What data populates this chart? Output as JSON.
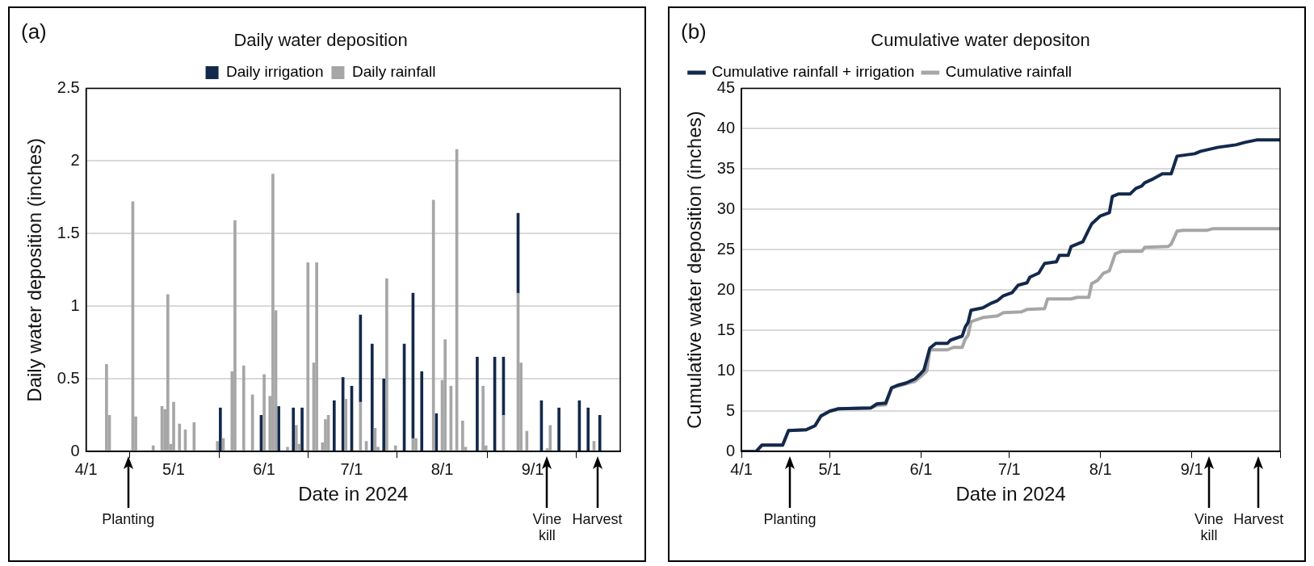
{
  "chart_data": [
    {
      "type": "bar",
      "title": "Daily water deposition",
      "xlabel": "Date in 2024",
      "ylabel": "Daily water deposition (inches)",
      "stacked": true,
      "grid": "y",
      "legend": "top",
      "x": [
        "2024-04-08",
        "2024-04-09",
        "2024-04-17",
        "2024-04-18",
        "2024-04-24",
        "2024-04-27",
        "2024-04-28",
        "2024-04-29",
        "2024-04-30",
        "2024-05-01",
        "2024-05-03",
        "2024-05-05",
        "2024-05-08",
        "2024-05-16",
        "2024-05-17",
        "2024-05-18",
        "2024-05-21",
        "2024-05-22",
        "2024-05-25",
        "2024-05-28",
        "2024-05-31",
        "2024-06-01",
        "2024-06-03",
        "2024-06-04",
        "2024-06-05",
        "2024-06-06",
        "2024-06-09",
        "2024-06-11",
        "2024-06-12",
        "2024-06-13",
        "2024-06-14",
        "2024-06-16",
        "2024-06-18",
        "2024-06-19",
        "2024-06-21",
        "2024-06-22",
        "2024-06-23",
        "2024-06-25",
        "2024-06-28",
        "2024-06-29",
        "2024-07-01",
        "2024-07-04",
        "2024-07-06",
        "2024-07-08",
        "2024-07-09",
        "2024-07-10",
        "2024-07-12",
        "2024-07-13",
        "2024-07-16",
        "2024-07-19",
        "2024-07-22",
        "2024-07-23",
        "2024-07-25",
        "2024-07-29",
        "2024-07-30",
        "2024-08-01",
        "2024-08-02",
        "2024-08-04",
        "2024-08-06",
        "2024-08-08",
        "2024-08-09",
        "2024-08-13",
        "2024-08-15",
        "2024-08-16",
        "2024-08-19",
        "2024-08-22",
        "2024-08-27",
        "2024-08-28",
        "2024-08-30",
        "2024-09-04",
        "2024-09-06",
        "2024-09-07",
        "2024-09-10",
        "2024-09-17",
        "2024-09-20",
        "2024-09-22",
        "2024-09-24"
      ],
      "series": [
        {
          "name": "Daily rainfall",
          "color": "#a6a6a6",
          "values": [
            0.6,
            0.25,
            1.72,
            0.24,
            0.04,
            0.31,
            0.29,
            1.08,
            0.05,
            0.34,
            0.19,
            0.15,
            0.2,
            0.07,
            null,
            0.09,
            0.55,
            1.59,
            0.59,
            0.39,
            null,
            0.53,
            0.38,
            1.91,
            0.97,
            null,
            0.03,
            null,
            0.18,
            0.05,
            null,
            1.3,
            0.61,
            1.3,
            0.06,
            0.22,
            0.25,
            null,
            null,
            0.36,
            null,
            0.34,
            0.07,
            null,
            0.16,
            0.03,
            null,
            1.19,
            0.04,
            null,
            0.09,
            0.09,
            null,
            1.73,
            null,
            0.49,
            0.77,
            0.45,
            2.08,
            0.21,
            0.03,
            null,
            0.45,
            0.04,
            null,
            0.25,
            1.09,
            0.61,
            0.14,
            null,
            0.02,
            0.18,
            null,
            null,
            null,
            0.07,
            null
          ]
        },
        {
          "name": "Daily irrigation",
          "color": "#13294b",
          "values": [
            null,
            null,
            null,
            null,
            null,
            null,
            null,
            null,
            null,
            null,
            null,
            null,
            null,
            null,
            0.3,
            null,
            null,
            null,
            null,
            null,
            0.25,
            null,
            null,
            null,
            null,
            0.31,
            null,
            0.3,
            null,
            null,
            0.3,
            null,
            null,
            null,
            null,
            null,
            null,
            0.35,
            0.51,
            null,
            0.45,
            0.6,
            null,
            0.74,
            null,
            null,
            0.5,
            null,
            null,
            0.74,
            1.0,
            null,
            0.55,
            null,
            0.26,
            null,
            null,
            null,
            null,
            null,
            null,
            0.65,
            null,
            null,
            0.65,
            0.4,
            0.55,
            null,
            null,
            0.35,
            null,
            null,
            0.3,
            0.35,
            0.3,
            null,
            0.25
          ]
        }
      ],
      "xlim": [
        "2024-04-01",
        "2024-10-01"
      ],
      "xticks": [
        {
          "value": "2024-04-01",
          "label": "4/1"
        },
        {
          "value": "2024-05-01",
          "label": "5/1"
        },
        {
          "value": "2024-06-01",
          "label": "6/1"
        },
        {
          "value": "2024-07-01",
          "label": "7/1"
        },
        {
          "value": "2024-08-01",
          "label": "8/1"
        },
        {
          "value": "2024-09-01",
          "label": "9/1"
        },
        {
          "value": "2024-10-01",
          "label": null
        }
      ],
      "ylim": [
        0,
        2.5
      ],
      "yticks": [
        0,
        0.5,
        1,
        1.5,
        2,
        2.5
      ],
      "annotations": [
        "(a)",
        "Planting",
        "Vine kill",
        "Harvest"
      ]
    },
    {
      "type": "line",
      "title": "Cumulative water depositon",
      "xlabel": "Date in 2024",
      "ylabel": "Cumulative water deposition (inches)",
      "grid": "y",
      "legend": "top left",
      "marker": "none",
      "line_style": "solid",
      "series": [
        {
          "name": "Cumulative rainfall + irrigation",
          "color": "#13294b",
          "x": [
            "2024-04-01",
            "2024-04-06",
            "2024-04-08",
            "2024-04-15",
            "2024-04-17",
            "2024-04-23",
            "2024-04-26",
            "2024-04-28",
            "2024-05-01",
            "2024-05-04",
            "2024-05-15",
            "2024-05-17",
            "2024-05-20",
            "2024-05-22",
            "2024-05-24",
            "2024-05-27",
            "2024-05-30",
            "2024-06-01",
            "2024-06-02",
            "2024-06-04",
            "2024-06-06",
            "2024-06-10",
            "2024-06-11",
            "2024-06-15",
            "2024-06-16",
            "2024-06-17",
            "2024-06-18",
            "2024-06-22",
            "2024-06-25",
            "2024-06-27",
            "2024-06-29",
            "2024-07-02",
            "2024-07-04",
            "2024-07-07",
            "2024-07-08",
            "2024-07-11",
            "2024-07-13",
            "2024-07-17",
            "2024-07-18",
            "2024-07-21",
            "2024-07-22",
            "2024-07-26",
            "2024-07-28",
            "2024-07-29",
            "2024-08-01",
            "2024-08-04",
            "2024-08-05",
            "2024-08-07",
            "2024-08-11",
            "2024-08-13",
            "2024-08-15",
            "2024-08-16",
            "2024-08-19",
            "2024-08-22",
            "2024-08-25",
            "2024-08-27",
            "2024-09-02",
            "2024-09-04",
            "2024-09-10",
            "2024-09-16",
            "2024-09-19",
            "2024-09-23",
            "2024-10-01"
          ],
          "values": [
            0,
            0,
            0.8,
            0.8,
            2.6,
            2.7,
            3.2,
            4.4,
            5.0,
            5.3,
            5.4,
            5.9,
            6.0,
            7.9,
            8.2,
            8.5,
            9.0,
            9.7,
            10.1,
            12.8,
            13.4,
            13.4,
            13.8,
            14.3,
            15.4,
            16.0,
            17.5,
            17.8,
            18.4,
            18.7,
            19.3,
            19.7,
            20.6,
            20.9,
            21.6,
            22.1,
            23.3,
            23.5,
            24.3,
            24.3,
            25.4,
            26.0,
            27.5,
            28.2,
            29.2,
            29.6,
            31.6,
            31.9,
            31.9,
            32.6,
            32.9,
            33.3,
            33.8,
            34.4,
            34.4,
            36.6,
            36.9,
            37.2,
            37.7,
            38.0,
            38.3,
            38.6,
            38.6
          ]
        },
        {
          "name": "Cumulative rainfall",
          "color": "#a6a6a6",
          "x": [
            "2024-04-01",
            "2024-04-06",
            "2024-04-08",
            "2024-04-15",
            "2024-04-17",
            "2024-04-23",
            "2024-04-26",
            "2024-04-28",
            "2024-05-01",
            "2024-05-04",
            "2024-05-15",
            "2024-05-17",
            "2024-05-20",
            "2024-05-22",
            "2024-05-24",
            "2024-05-27",
            "2024-05-30",
            "2024-06-01",
            "2024-06-03",
            "2024-06-04",
            "2024-06-10",
            "2024-06-12",
            "2024-06-15",
            "2024-06-16",
            "2024-06-17",
            "2024-06-18",
            "2024-06-22",
            "2024-06-27",
            "2024-06-29",
            "2024-07-05",
            "2024-07-07",
            "2024-07-13",
            "2024-07-14",
            "2024-07-22",
            "2024-07-24",
            "2024-07-28",
            "2024-07-29",
            "2024-07-31",
            "2024-08-02",
            "2024-08-04",
            "2024-08-06",
            "2024-08-08",
            "2024-08-15",
            "2024-08-16",
            "2024-08-24",
            "2024-08-25",
            "2024-08-27",
            "2024-08-29",
            "2024-09-06",
            "2024-09-08",
            "2024-10-01"
          ],
          "values": [
            0,
            0,
            0.8,
            0.8,
            2.6,
            2.7,
            3.2,
            4.4,
            5.0,
            5.3,
            5.4,
            5.7,
            5.8,
            7.8,
            8.1,
            8.4,
            8.7,
            9.3,
            10.0,
            12.6,
            12.6,
            12.9,
            12.9,
            13.9,
            14.4,
            16.1,
            16.6,
            16.8,
            17.2,
            17.3,
            17.6,
            17.7,
            18.9,
            18.9,
            19.1,
            19.1,
            20.8,
            21.2,
            22.1,
            22.4,
            24.5,
            24.8,
            24.8,
            25.3,
            25.4,
            25.7,
            27.3,
            27.4,
            27.4,
            27.6,
            27.6
          ]
        }
      ],
      "xlim": [
        "2024-04-01",
        "2024-10-01"
      ],
      "xticks": [
        {
          "value": "2024-04-01",
          "label": "4/1"
        },
        {
          "value": "2024-05-01",
          "label": "5/1"
        },
        {
          "value": "2024-06-01",
          "label": "6/1"
        },
        {
          "value": "2024-07-01",
          "label": "7/1"
        },
        {
          "value": "2024-08-01",
          "label": "8/1"
        },
        {
          "value": "2024-09-01",
          "label": "9/1"
        },
        {
          "value": "2024-10-01",
          "label": null
        }
      ],
      "ylim": [
        0,
        45
      ],
      "yticks": [
        0,
        5,
        10,
        15,
        20,
        25,
        30,
        35,
        40,
        45
      ],
      "annotations": [
        "(b)",
        "Planting",
        "Vine kill",
        "Harvest"
      ]
    }
  ]
}
